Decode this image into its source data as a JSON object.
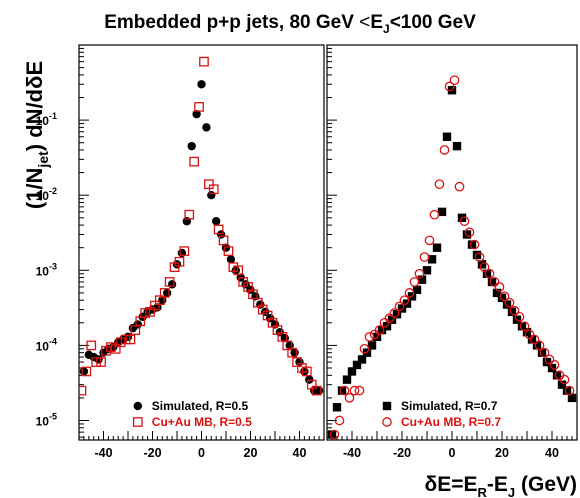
{
  "chart_data": {
    "type": "scatter",
    "title": "Embedded p+p jets, 80 GeV <E_J<100 GeV",
    "title_parts": {
      "main": "Embedded p+p jets, 80 GeV ",
      "lt": "<",
      "E": "E",
      "J": "J",
      "tail": "<100 GeV"
    },
    "ylabel_parts": {
      "pre": "(1/N",
      "sub": "jet",
      "post": ") dN/dδE"
    },
    "xlabel_parts": {
      "pre": "δE=E",
      "R": "R",
      "mid": "-E",
      "J": "J",
      "post": " (GeV)"
    },
    "y_scale": "log",
    "y_tick_labels": [
      {
        "base": "10",
        "exp": "-1",
        "value": 0.1
      },
      {
        "base": "10",
        "exp": "-2",
        "value": 0.01
      },
      {
        "base": "10",
        "exp": "-3",
        "value": 0.001
      },
      {
        "base": "10",
        "exp": "-4",
        "value": 0.0001
      },
      {
        "base": "10",
        "exp": "-5",
        "value": 1e-05
      }
    ],
    "ylim": [
      5.5e-06,
      1.0
    ],
    "xlim": [
      -50,
      50
    ],
    "x_ticks": [
      -40,
      -20,
      0,
      20,
      40
    ],
    "colors": {
      "black": "#000000",
      "red": "#dd1111"
    },
    "panels": [
      {
        "legend_position": "bottom-right",
        "series": [
          {
            "name": "Simulated, R=0.5",
            "marker": "filled-circle",
            "color": "#000000",
            "x": [
              -48,
              -46,
              -44,
              -42,
              -40,
              -38,
              -36,
              -34,
              -32,
              -30,
              -28,
              -26,
              -24,
              -22,
              -20,
              -18,
              -16,
              -14,
              -12,
              -10,
              -8,
              -6,
              -4,
              -2,
              0,
              2,
              4,
              6,
              8,
              10,
              12,
              14,
              16,
              18,
              20,
              22,
              24,
              26,
              28,
              30,
              32,
              34,
              36,
              38,
              40,
              42,
              44,
              46,
              48
            ],
            "y": [
              4.5e-05,
              7.5e-05,
              7e-05,
              6.5e-05,
              8e-05,
              9e-05,
              9.5e-05,
              0.00011,
              0.00012,
              0.00013,
              0.00017,
              0.00019,
              0.00024,
              0.00028,
              0.0003,
              0.00032,
              0.0004,
              0.0005,
              0.00065,
              0.0012,
              0.0017,
              0.0045,
              0.045,
              0.12,
              0.3,
              0.08,
              0.01,
              0.0045,
              0.003,
              0.002,
              0.0014,
              0.001,
              0.0008,
              0.00065,
              0.00055,
              0.00045,
              0.00035,
              0.00028,
              0.00023,
              0.00019,
              0.00015,
              0.000125,
              0.0001,
              8e-05,
              6e-05,
              4.5e-05,
              3.5e-05,
              2.5e-05,
              2.5e-05
            ]
          },
          {
            "name": "Cu+Au MB, R=0.5",
            "marker": "open-square",
            "color": "#dd1111",
            "x": [
              -49,
              -47,
              -45,
              -43,
              -41,
              -39,
              -37,
              -35,
              -33,
              -31,
              -29,
              -27,
              -25,
              -23,
              -21,
              -19,
              -17,
              -15,
              -13,
              -11,
              -9,
              -7,
              -5,
              -3,
              -1,
              1,
              3,
              5,
              7,
              9,
              11,
              13,
              15,
              17,
              19,
              21,
              23,
              25,
              27,
              29,
              31,
              33,
              35,
              37,
              39,
              41,
              43,
              45,
              47
            ],
            "y": [
              2.5e-05,
              4.5e-05,
              0.0001,
              6e-05,
              6e-05,
              8.5e-05,
              9.5e-05,
              9e-05,
              0.00011,
              0.00012,
              0.00012,
              0.00016,
              0.00021,
              0.00027,
              0.00028,
              0.00034,
              0.0004,
              0.0005,
              0.0007,
              0.0011,
              0.0013,
              0.0018,
              0.0055,
              0.028,
              0.15,
              0.6,
              0.014,
              0.012,
              0.0035,
              0.0025,
              0.0018,
              0.0011,
              0.001,
              0.0007,
              0.0006,
              0.00048,
              0.00037,
              0.0003,
              0.00025,
              0.0002,
              0.00016,
              0.00013,
              0.0001,
              8e-05,
              6e-05,
              5e-05,
              4.5e-05,
              3e-05,
              2.5e-05
            ]
          }
        ]
      },
      {
        "legend_position": "bottom-right",
        "series": [
          {
            "name": "Simulated, R=0.7",
            "marker": "filled-square",
            "color": "#000000",
            "x": [
              -48,
              -46,
              -44,
              -42,
              -40,
              -38,
              -36,
              -34,
              -32,
              -30,
              -28,
              -26,
              -24,
              -22,
              -20,
              -18,
              -16,
              -14,
              -12,
              -10,
              -8,
              -6,
              -4,
              -2,
              0,
              2,
              4,
              6,
              8,
              10,
              12,
              14,
              16,
              18,
              20,
              22,
              24,
              26,
              28,
              30,
              32,
              34,
              36,
              38,
              40,
              42,
              44,
              46,
              48
            ],
            "y": [
              6.5e-06,
              1.5e-05,
              2.5e-05,
              3.5e-05,
              4.5e-05,
              5.5e-05,
              6.5e-05,
              8e-05,
              0.0001,
              0.00013,
              0.00016,
              0.00018,
              0.00022,
              0.00026,
              0.00031,
              0.00036,
              0.00045,
              0.00055,
              0.00075,
              0.001,
              0.0014,
              0.002,
              0.006,
              0.06,
              0.25,
              0.045,
              0.005,
              0.003,
              0.0022,
              0.0016,
              0.0012,
              0.0009,
              0.0007,
              0.0005,
              0.00043,
              0.00035,
              0.00028,
              0.00022,
              0.00018,
              0.00015,
              0.00012,
              0.0001,
              8e-05,
              6e-05,
              5e-05,
              4e-05,
              3e-05,
              2.5e-05,
              2e-05
            ]
          },
          {
            "name": "Cu+Au MB, R=0.7",
            "marker": "open-circle",
            "color": "#dd1111",
            "x": [
              -49,
              -47,
              -45,
              -43,
              -41,
              -39,
              -37,
              -35,
              -33,
              -31,
              -29,
              -27,
              -25,
              -23,
              -21,
              -19,
              -17,
              -15,
              -13,
              -11,
              -9,
              -7,
              -5,
              -3,
              -1,
              1,
              3,
              5,
              7,
              9,
              11,
              13,
              15,
              17,
              19,
              21,
              23,
              25,
              27,
              29,
              31,
              33,
              35,
              37,
              39,
              41,
              43,
              45,
              47
            ],
            "y": [
              4.5e-06,
              6.5e-06,
              1e-05,
              2.5e-05,
              2e-05,
              2.5e-05,
              2.5e-05,
              9e-05,
              0.00013,
              0.00014,
              0.00016,
              0.0002,
              0.00023,
              0.00027,
              0.00033,
              0.0004,
              0.0005,
              0.0007,
              0.0009,
              0.0015,
              0.0025,
              0.0055,
              0.014,
              0.04,
              0.28,
              0.34,
              0.013,
              0.0045,
              0.0032,
              0.0022,
              0.0015,
              0.0011,
              0.0009,
              0.0007,
              0.0006,
              0.00045,
              0.00037,
              0.00029,
              0.00024,
              0.00018,
              0.00014,
              0.00012,
              0.0001,
              8e-05,
              6.5e-05,
              5.5e-05,
              4e-05,
              3.5e-05,
              2.5e-05
            ]
          }
        ]
      }
    ]
  }
}
